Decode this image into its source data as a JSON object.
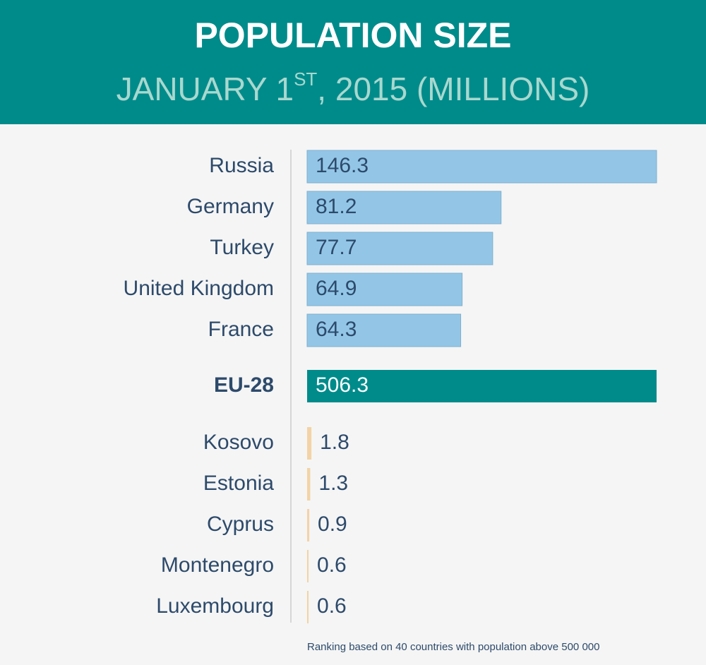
{
  "chart_data": {
    "type": "bar",
    "title": "POPULATION SIZE",
    "subtitle": [
      "JANUARY 1",
      "ST",
      ", 2015 (MILLIONS)"
    ],
    "groups": [
      {
        "color": "#93c6e6",
        "categories": [
          "Russia",
          "Germany",
          "Turkey",
          "United Kingdom",
          "France"
        ],
        "values": [
          146.3,
          81.2,
          77.7,
          64.9,
          64.3
        ]
      },
      {
        "color": "#008b8b",
        "categories": [
          "EU-28"
        ],
        "values": [
          506.3
        ]
      },
      {
        "color": "#f3d3a6",
        "categories": [
          "Kosovo",
          "Estonia",
          "Cyprus",
          "Montenegro",
          "Luxembourg"
        ],
        "values": [
          1.8,
          1.3,
          0.9,
          0.6,
          0.6
        ]
      }
    ],
    "footnote": "Ranking based on 40 countries with population above 500 000"
  }
}
